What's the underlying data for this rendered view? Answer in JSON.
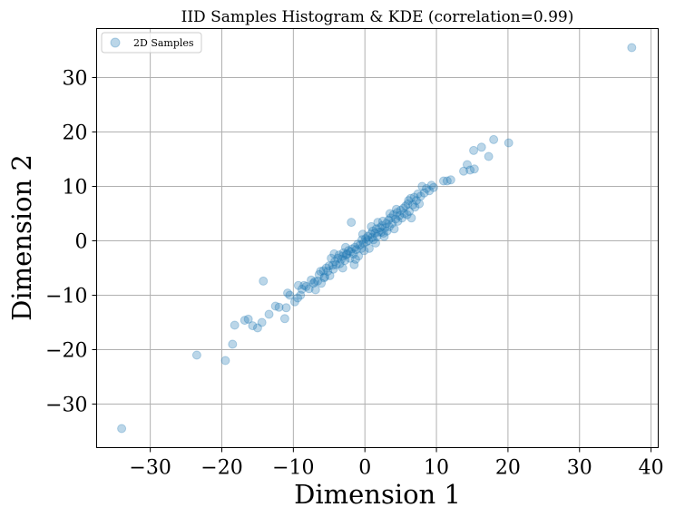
{
  "chart_data": {
    "type": "scatter",
    "title": "IID Samples Histogram & KDE (correlation=0.99)",
    "xlabel": "Dimension 1",
    "ylabel": "Dimension 2",
    "xlim": [
      -37.5,
      41
    ],
    "ylim": [
      -38,
      39
    ],
    "xticks": [
      -30,
      -20,
      -10,
      0,
      10,
      20,
      30,
      40
    ],
    "yticks": [
      -30,
      -20,
      -10,
      0,
      10,
      20,
      30
    ],
    "grid": true,
    "legend_position": "top-left",
    "series": [
      {
        "name": "2D Samples",
        "color": "#1f77b4",
        "alpha": 0.3,
        "points": [
          [
            -34,
            -34.5
          ],
          [
            -23.5,
            -21
          ],
          [
            -19.5,
            -22
          ],
          [
            -18.5,
            -19
          ],
          [
            -18.2,
            -15.5
          ],
          [
            -16.8,
            -14.6
          ],
          [
            -16.3,
            -14.4
          ],
          [
            -15.7,
            -15.6
          ],
          [
            -15,
            -16
          ],
          [
            -14.4,
            -15
          ],
          [
            -14.2,
            -7.4
          ],
          [
            -13.4,
            -13.5
          ],
          [
            -12.5,
            -12
          ],
          [
            -12,
            -12.2
          ],
          [
            -11.2,
            -14.3
          ],
          [
            -11,
            -12.3
          ],
          [
            -10.8,
            -9.6
          ],
          [
            -10.5,
            -10
          ],
          [
            -9.8,
            -11.2
          ],
          [
            -9.4,
            -10.5
          ],
          [
            -9.3,
            -8.2
          ],
          [
            -9,
            -10
          ],
          [
            -8.5,
            -8.2
          ],
          [
            -8.2,
            -8.4
          ],
          [
            -7.8,
            -8.8
          ],
          [
            -7.5,
            -7.2
          ],
          [
            -7.2,
            -7.8
          ],
          [
            -7,
            -7.5
          ],
          [
            -6.9,
            -9
          ],
          [
            -6.6,
            -7.4
          ],
          [
            -6.4,
            -6.2
          ],
          [
            -6.2,
            -5.6
          ],
          [
            -6.1,
            -7.8
          ],
          [
            -5.8,
            -5.5
          ],
          [
            -5.6,
            -6.6
          ],
          [
            -5.4,
            -5
          ],
          [
            -5.2,
            -5.6
          ],
          [
            -5,
            -4.6
          ],
          [
            -4.9,
            -6.4
          ],
          [
            -4.7,
            -3.2
          ],
          [
            -4.5,
            -4.5
          ],
          [
            -4.3,
            -2.4
          ],
          [
            -4.2,
            -3.8
          ],
          [
            -4,
            -4.4
          ],
          [
            -3.8,
            -3.2
          ],
          [
            -3.6,
            -2.6
          ],
          [
            -3.5,
            -4.2
          ],
          [
            -3.3,
            -3.4
          ],
          [
            -3.1,
            -2.8
          ],
          [
            -3,
            -2.2
          ],
          [
            -2.8,
            -3.6
          ],
          [
            -2.6,
            -2.6
          ],
          [
            -2.5,
            -2.4
          ],
          [
            -2.3,
            -1.8
          ],
          [
            -2.1,
            -3.2
          ],
          [
            -2,
            -2
          ],
          [
            -1.8,
            -1.5
          ],
          [
            -1.6,
            -2.4
          ],
          [
            -1.5,
            -4.4
          ],
          [
            -1.4,
            -1.2
          ],
          [
            -1.2,
            -1.6
          ],
          [
            -1,
            -0.6
          ],
          [
            -0.9,
            -2.8
          ],
          [
            -0.7,
            -0.8
          ],
          [
            -0.5,
            -1.4
          ],
          [
            -0.4,
            0.2
          ],
          [
            -0.2,
            -0.4
          ],
          [
            -0.1,
            -1.8
          ],
          [
            0.1,
            0.4
          ],
          [
            0.2,
            -0.2
          ],
          [
            0.4,
            0.8
          ],
          [
            0.5,
            0.1
          ],
          [
            0.6,
            -1.4
          ],
          [
            0.8,
            1.2
          ],
          [
            1,
            0.6
          ],
          [
            1.1,
            1.8
          ],
          [
            1.2,
            0.2
          ],
          [
            1.4,
            1.4
          ],
          [
            1.6,
            2.2
          ],
          [
            1.7,
            0.8
          ],
          [
            1.8,
            3.4
          ],
          [
            1.9,
            1.6
          ],
          [
            2.1,
            2.4
          ],
          [
            2.3,
            1.6
          ],
          [
            2.4,
            2.8
          ],
          [
            2.5,
            3.6
          ],
          [
            2.7,
            0.8
          ],
          [
            2.8,
            2.4
          ],
          [
            3,
            3.2
          ],
          [
            3.1,
            1.8
          ],
          [
            3.3,
            3.8
          ],
          [
            3.4,
            2.6
          ],
          [
            3.6,
            4.2
          ],
          [
            3.8,
            3.2
          ],
          [
            4,
            4.8
          ],
          [
            4.1,
            2.2
          ],
          [
            4.3,
            4
          ],
          [
            4.5,
            5.2
          ],
          [
            4.6,
            3.6
          ],
          [
            4.8,
            4.6
          ],
          [
            5,
            5.6
          ],
          [
            5.2,
            4.2
          ],
          [
            5.4,
            6
          ],
          [
            5.5,
            5
          ],
          [
            5.7,
            6.4
          ],
          [
            5.9,
            4.8
          ],
          [
            6,
            6.8
          ],
          [
            6.2,
            5.4
          ],
          [
            6.4,
            7.8
          ],
          [
            6.5,
            4.2
          ],
          [
            6.7,
            6.6
          ],
          [
            6.9,
            8
          ],
          [
            7,
            6.2
          ],
          [
            7.2,
            7.4
          ],
          [
            7.4,
            8.6
          ],
          [
            7.6,
            6.8
          ],
          [
            7.8,
            8.2
          ],
          [
            8,
            10
          ],
          [
            8.3,
            8.8
          ],
          [
            8.6,
            9.6
          ],
          [
            9,
            9.2
          ],
          [
            9.3,
            10.2
          ],
          [
            9.6,
            9.8
          ],
          [
            11,
            11
          ],
          [
            11.5,
            11
          ],
          [
            12,
            11.2
          ],
          [
            13.8,
            12.8
          ],
          [
            14.3,
            14
          ],
          [
            14.7,
            13
          ],
          [
            15.2,
            16.6
          ],
          [
            15.3,
            13.2
          ],
          [
            16.3,
            17.2
          ],
          [
            17.3,
            15.5
          ],
          [
            18,
            18.6
          ],
          [
            20.1,
            18
          ],
          [
            37.3,
            35.5
          ],
          [
            -1.9,
            3.4
          ],
          [
            -3.1,
            -5
          ],
          [
            2.6,
            1.4
          ],
          [
            -0.3,
            1.2
          ],
          [
            1.5,
            -0.4
          ],
          [
            -5.7,
            -6.8
          ],
          [
            4.4,
            5.8
          ],
          [
            -2.7,
            -1.2
          ],
          [
            3.5,
            5
          ],
          [
            -8.8,
            -8.9
          ],
          [
            6.1,
            7.4
          ],
          [
            -4.4,
            -5.2
          ],
          [
            0.9,
            2.6
          ],
          [
            -1.3,
            -3.4
          ]
        ]
      }
    ]
  }
}
